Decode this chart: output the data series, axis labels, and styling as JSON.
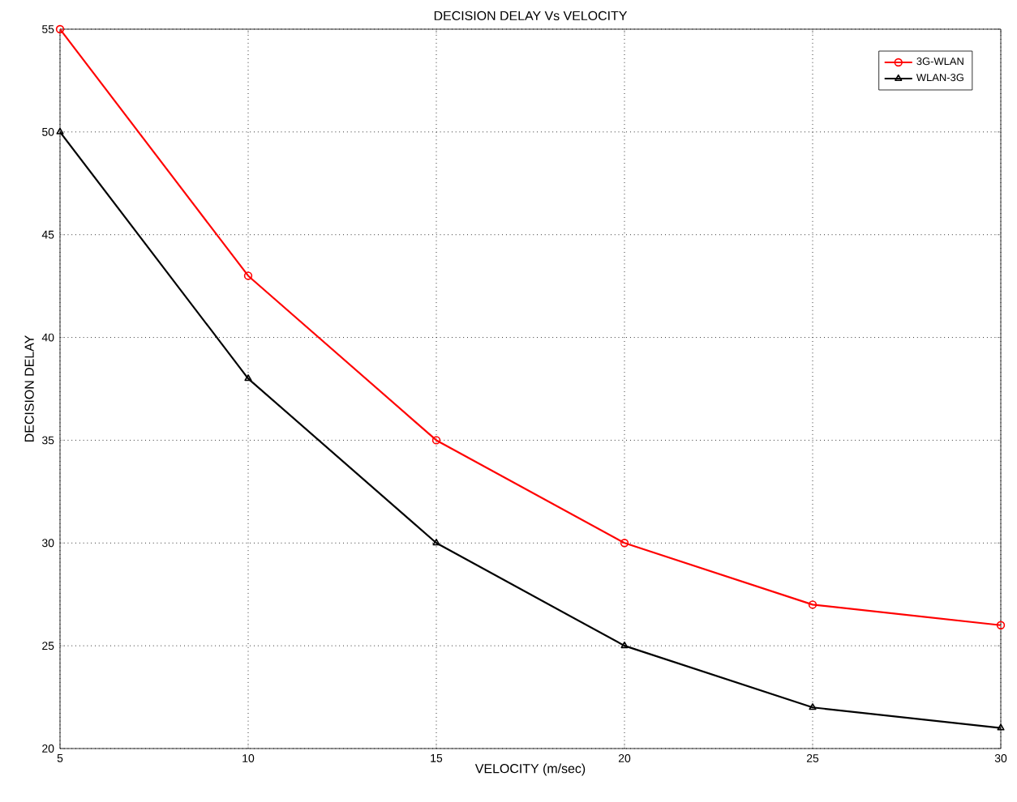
{
  "chart_data": {
    "type": "line",
    "title": "DECISION DELAY Vs VELOCITY",
    "xlabel": "VELOCITY (m/sec)",
    "ylabel": "DECISION DELAY",
    "x": [
      5,
      10,
      15,
      20,
      25,
      30
    ],
    "series": [
      {
        "name": "3G-WLAN",
        "color": "#ff0000",
        "marker": "circle",
        "values": [
          55,
          43,
          35,
          30,
          27,
          26
        ]
      },
      {
        "name": "WLAN-3G",
        "color": "#000000",
        "marker": "triangle",
        "values": [
          50,
          38,
          30,
          25,
          22,
          21
        ]
      }
    ],
    "xlim": [
      5,
      30
    ],
    "xticks": [
      5,
      10,
      15,
      20,
      25,
      30
    ],
    "ylim": [
      20,
      55
    ],
    "yticks": [
      20,
      25,
      30,
      35,
      40,
      45,
      50,
      55
    ],
    "grid": true,
    "legend": "top right",
    "line_style": "solid"
  }
}
